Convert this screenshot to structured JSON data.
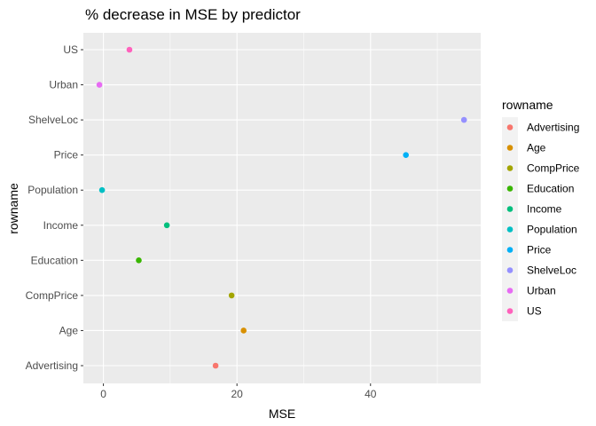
{
  "chart_data": {
    "type": "scatter",
    "title": "% decrease in MSE by predictor",
    "xlabel": "MSE",
    "ylabel": "rowname",
    "xlim": [
      -3.0,
      56.5
    ],
    "x_ticks": [
      0,
      20,
      40
    ],
    "x_tick_labels": [
      "0",
      "20",
      "40"
    ],
    "categories": [
      "Advertising",
      "Age",
      "CompPrice",
      "Education",
      "Income",
      "Population",
      "Price",
      "ShelveLoc",
      "Urban",
      "US"
    ],
    "points": [
      {
        "name": "Advertising",
        "x": 16.8,
        "color": "#F8766D"
      },
      {
        "name": "Age",
        "x": 21.0,
        "color": "#D89000"
      },
      {
        "name": "CompPrice",
        "x": 19.2,
        "color": "#A3A500"
      },
      {
        "name": "Education",
        "x": 5.3,
        "color": "#39B600"
      },
      {
        "name": "Income",
        "x": 9.5,
        "color": "#00BF7D"
      },
      {
        "name": "Population",
        "x": -0.2,
        "color": "#00BFC4"
      },
      {
        "name": "Price",
        "x": 45.3,
        "color": "#00B0F6"
      },
      {
        "name": "ShelveLoc",
        "x": 54.0,
        "color": "#9590FF"
      },
      {
        "name": "Urban",
        "x": -0.6,
        "color": "#E76BF3"
      },
      {
        "name": "US",
        "x": 3.9,
        "color": "#FF62BC"
      }
    ],
    "legend": {
      "title": "rowname",
      "position": "right",
      "entries": [
        "Advertising",
        "Age",
        "CompPrice",
        "Education",
        "Income",
        "Population",
        "Price",
        "ShelveLoc",
        "Urban",
        "US"
      ]
    },
    "grid": true,
    "panel_background": "#EBEBEB",
    "grid_color": "#FFFFFF"
  }
}
